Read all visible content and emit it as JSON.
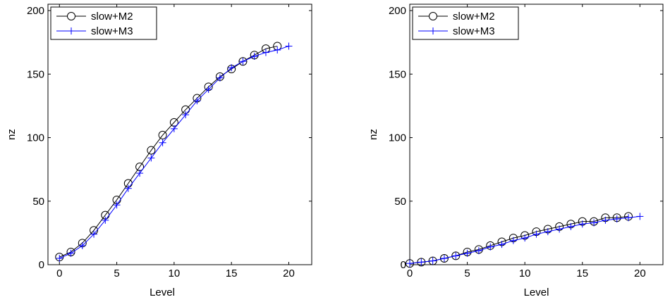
{
  "chart_data": [
    {
      "type": "line",
      "xlabel": "Level",
      "ylabel": "nz",
      "xlim": [
        -1,
        22
      ],
      "ylim": [
        0,
        205
      ],
      "xticks": [
        0,
        5,
        10,
        15,
        20
      ],
      "yticks": [
        0,
        50,
        100,
        150,
        200
      ],
      "legend_position": "top-left",
      "series": [
        {
          "name": "slow+M2",
          "marker": "circle",
          "color": "#000000",
          "x": [
            0,
            1,
            2,
            3,
            4,
            5,
            6,
            7,
            8,
            9,
            10,
            11,
            12,
            13,
            14,
            15,
            16,
            17,
            18,
            19
          ],
          "values": [
            6,
            10,
            17,
            27,
            39,
            51,
            64,
            77,
            90,
            102,
            112,
            122,
            131,
            140,
            148,
            154,
            160,
            165,
            170,
            172
          ]
        },
        {
          "name": "slow+M3",
          "marker": "plus",
          "color": "#0000ff",
          "x": [
            0,
            1,
            2,
            3,
            4,
            5,
            6,
            7,
            8,
            9,
            10,
            11,
            12,
            13,
            14,
            15,
            16,
            17,
            18,
            19,
            20
          ],
          "values": [
            5,
            9,
            15,
            24,
            35,
            47,
            60,
            72,
            84,
            96,
            107,
            118,
            129,
            138,
            147,
            155,
            160,
            164,
            167,
            169,
            172
          ]
        }
      ]
    },
    {
      "type": "line",
      "xlabel": "Level",
      "ylabel": "nz",
      "xlim": [
        0,
        22
      ],
      "ylim": [
        0,
        205
      ],
      "xticks": [
        0,
        5,
        10,
        15,
        20
      ],
      "yticks": [
        0,
        50,
        100,
        150,
        200
      ],
      "legend_position": "top-left",
      "series": [
        {
          "name": "slow+M2",
          "marker": "circle",
          "color": "#000000",
          "x": [
            0,
            1,
            2,
            3,
            4,
            5,
            6,
            7,
            8,
            9,
            10,
            11,
            12,
            13,
            14,
            15,
            16,
            17,
            18,
            19
          ],
          "values": [
            1,
            2,
            3,
            5,
            7,
            10,
            12,
            15,
            18,
            21,
            23,
            26,
            28,
            30,
            32,
            34,
            34,
            37,
            37,
            38
          ]
        },
        {
          "name": "slow+M3",
          "marker": "plus",
          "color": "#0000ff",
          "x": [
            0,
            1,
            2,
            3,
            4,
            5,
            6,
            7,
            8,
            9,
            10,
            11,
            12,
            13,
            14,
            15,
            16,
            17,
            18,
            19,
            20
          ],
          "values": [
            1,
            2,
            3,
            5,
            7,
            9,
            11,
            14,
            16,
            19,
            21,
            24,
            26,
            28,
            30,
            32,
            33,
            35,
            36,
            37,
            38
          ]
        }
      ]
    }
  ]
}
